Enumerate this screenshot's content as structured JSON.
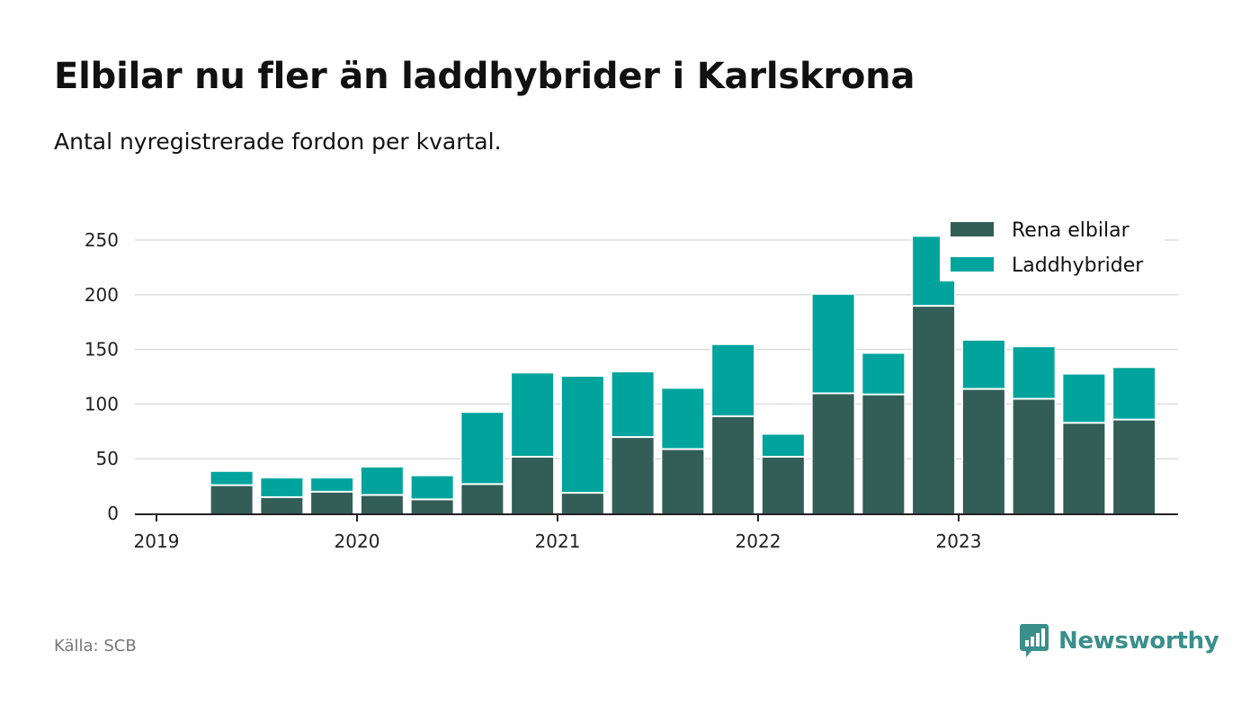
{
  "header": {
    "title": "Elbilar nu fler än laddhybrider i Karlskrona",
    "subtitle": "Antal nyregistrerade fordon per kvartal."
  },
  "footer": {
    "source": "Källa: SCB",
    "brand": "Newsworthy"
  },
  "colors": {
    "rena_elbilar": "#335d57",
    "laddhybrider": "#00a49c",
    "grid": "#dddddd",
    "axis": "#222222",
    "brand": "#3a8f8a"
  },
  "chart_data": {
    "type": "bar",
    "stacked": true,
    "title": "Elbilar nu fler än laddhybrider i Karlskrona",
    "subtitle": "Antal nyregistrerade fordon per kvartal.",
    "xlabel": "",
    "ylabel": "",
    "ylim": [
      0,
      250
    ],
    "yticks": [
      0,
      50,
      100,
      150,
      200,
      250
    ],
    "xticks": [
      "2019",
      "2020",
      "2021",
      "2022",
      "2023"
    ],
    "grid": true,
    "legend_position": "top-right",
    "categories": [
      "2019 K2",
      "2019 K3",
      "2019 K4",
      "2020 K1",
      "2020 K2",
      "2020 K3",
      "2020 K4",
      "2021 K1",
      "2021 K2",
      "2021 K3",
      "2021 K4",
      "2022 K1",
      "2022 K2",
      "2022 K3",
      "2022 K4",
      "2023 K1",
      "2023 K2",
      "2023 K3",
      "2023 K4"
    ],
    "series": [
      {
        "name": "Rena elbilar",
        "values": [
          25,
          14,
          19,
          16,
          12,
          26,
          51,
          18,
          69,
          58,
          88,
          51,
          109,
          108,
          189,
          113,
          104,
          82,
          85
        ]
      },
      {
        "name": "Laddhybrider",
        "values": [
          13,
          18,
          13,
          26,
          22,
          66,
          77,
          107,
          60,
          56,
          66,
          21,
          91,
          38,
          64,
          45,
          48,
          45,
          48
        ]
      }
    ]
  }
}
